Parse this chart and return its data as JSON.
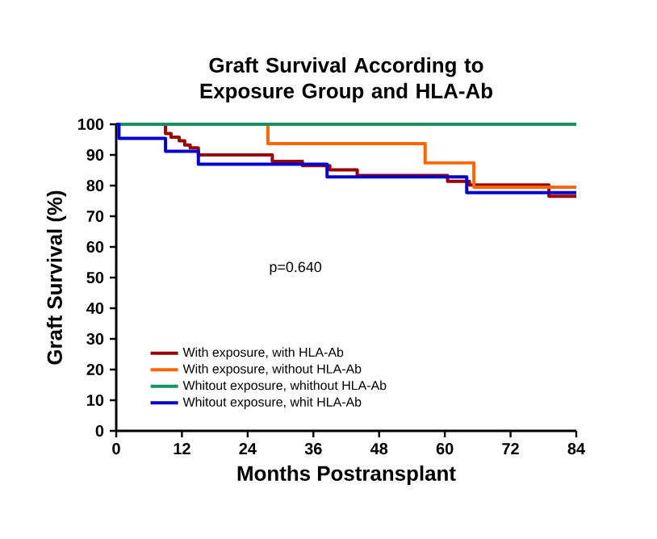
{
  "chart_data": {
    "type": "step",
    "title": "Graft Survival According to Exposure Group and HLA-Ab",
    "xlabel": "Months Postransplant",
    "ylabel": "Graft Survival (%)",
    "annotations": [
      "p=0.640"
    ],
    "xlim": [
      0,
      84
    ],
    "ylim": [
      0,
      100
    ],
    "xticks": [
      0,
      12,
      24,
      36,
      48,
      60,
      72,
      84
    ],
    "yticks": [
      0,
      10,
      20,
      30,
      40,
      50,
      60,
      70,
      80,
      90,
      100
    ],
    "grid": false,
    "legend": "bottom left",
    "line_style": "solid",
    "series": [
      {
        "name": "With exposure, with HLA-Ab",
        "color": "#990000",
        "x": [
          0,
          9,
          10,
          11.5,
          12.5,
          13.5,
          15,
          28.5,
          34,
          39,
          44,
          60.5,
          64.5,
          79,
          84
        ],
        "values": [
          100,
          97,
          95.8,
          94.6,
          93.2,
          92.3,
          90,
          87.9,
          86.5,
          85.1,
          83.3,
          81.4,
          80.2,
          76.5,
          76.5
        ]
      },
      {
        "name": "With exposure, without HLA-Ab",
        "color": "#ff6600",
        "x": [
          0,
          27.7,
          56.4,
          65.3,
          84
        ],
        "values": [
          100,
          93.7,
          87.4,
          79.5,
          79.5
        ]
      },
      {
        "name": "Whitout exposure, whithout HLA-Ab",
        "color": "#1a9060",
        "x": [
          0,
          84
        ],
        "values": [
          100,
          100
        ]
      },
      {
        "name": "Whitout exposure, whit HLA-Ab",
        "color": "#0000cc",
        "x": [
          0,
          0.5,
          9,
          15,
          38.5,
          64,
          84
        ],
        "values": [
          100,
          95.4,
          91.2,
          87,
          82.8,
          77.7,
          77.7
        ]
      }
    ]
  }
}
